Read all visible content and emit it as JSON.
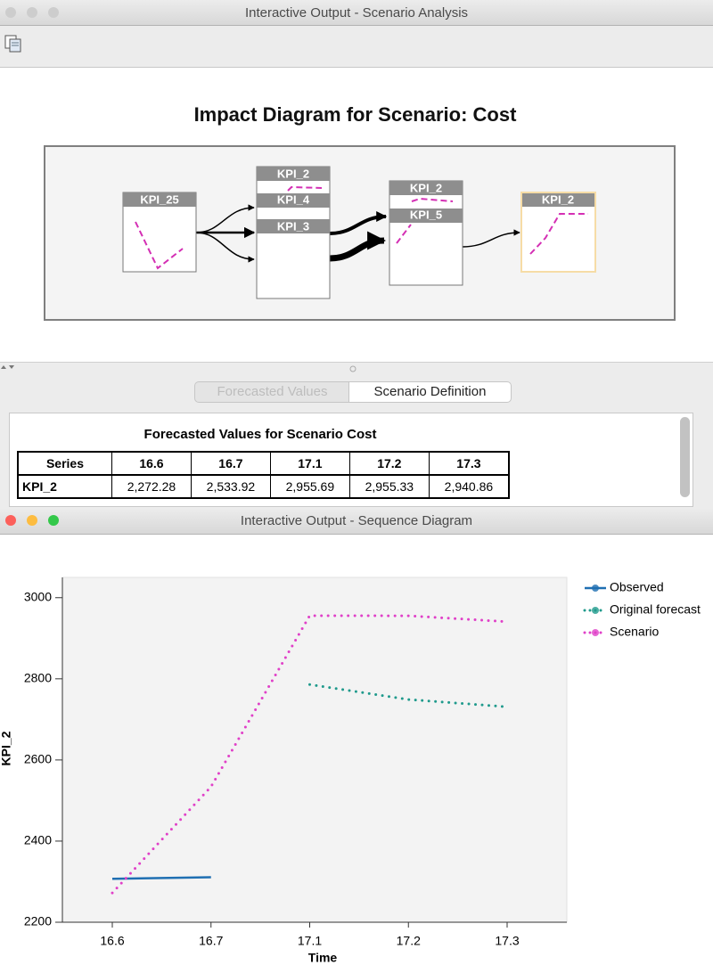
{
  "scenario_window": {
    "title": "Interactive Output - Scenario Analysis",
    "diagram_title": "Impact Diagram for Scenario: Cost",
    "nodes": [
      {
        "labels": [
          "KPI_25"
        ]
      },
      {
        "labels": [
          "KPI_2",
          "KPI_4",
          "KPI_3"
        ]
      },
      {
        "labels": [
          "KPI_2",
          "KPI_5"
        ]
      },
      {
        "labels": [
          "KPI_2"
        ]
      }
    ],
    "tabs": [
      "Forecasted Values",
      "Scenario Definition"
    ],
    "table": {
      "title": "Forecasted Values for Scenario Cost",
      "header": [
        "Series",
        "16.6",
        "16.7",
        "17.1",
        "17.2",
        "17.3"
      ],
      "rows": [
        [
          "KPI_2",
          "2,272.28",
          "2,533.92",
          "2,955.69",
          "2,955.33",
          "2,940.86"
        ]
      ]
    }
  },
  "sequence_window": {
    "title": "Interactive Output - Sequence Diagram"
  },
  "chart_data": {
    "type": "line",
    "x": [
      "16.6",
      "16.7",
      "17.1",
      "17.2",
      "17.3"
    ],
    "xlabel": "Time",
    "ylabel": "KPI_2",
    "ylim": [
      2200,
      3050
    ],
    "yticks": [
      2200,
      2400,
      2600,
      2800,
      3000
    ],
    "grid": false,
    "legend": "right",
    "series": [
      {
        "name": "Observed",
        "color": "#1f6fb2",
        "line_style": "solid",
        "values": [
          2307,
          2311,
          null,
          null,
          null
        ]
      },
      {
        "name": "Original forecast",
        "color": "#1f9a8c",
        "line_style": "dotted",
        "values": [
          null,
          null,
          2786,
          2749,
          2731
        ]
      },
      {
        "name": "Scenario",
        "color": "#e040c8",
        "line_style": "dotted",
        "values": [
          2272.28,
          2533.92,
          2955.69,
          2955.33,
          2940.86
        ]
      }
    ]
  }
}
